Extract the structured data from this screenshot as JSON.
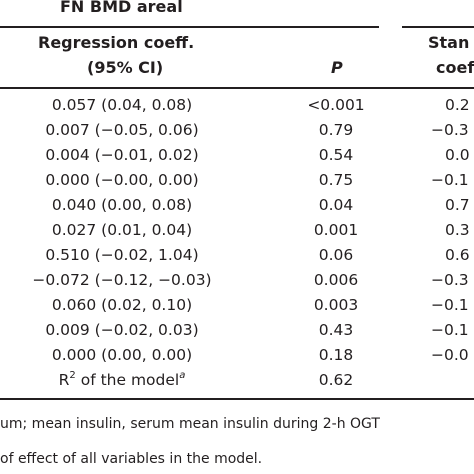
{
  "header": {
    "group_title": "FN BMD areal",
    "col_regression_line1": "Regression coeff.",
    "col_regression_line2": "(95% CI)",
    "col_p": "P",
    "col_standardized_line1": "Stan",
    "col_standardized_line2": "coef"
  },
  "rows": [
    {
      "coef": "0.057 (0.04, 0.08)",
      "p": "<0.001",
      "std": "0.2"
    },
    {
      "coef": "0.007 (−0.05, 0.06)",
      "p": "0.79",
      "std": "−0.3"
    },
    {
      "coef": "0.004 (−0.01, 0.02)",
      "p": "0.54",
      "std": "0.0"
    },
    {
      "coef": "0.000 (−0.00, 0.00)",
      "p": "0.75",
      "std": "−0.1"
    },
    {
      "coef": "0.040 (0.00, 0.08)",
      "p": "0.04",
      "std": "0.7"
    },
    {
      "coef": "0.027 (0.01, 0.04)",
      "p": "0.001",
      "std": "0.3"
    },
    {
      "coef": "0.510 (−0.02, 1.04)",
      "p": "0.06",
      "std": "0.6"
    },
    {
      "coef": "−0.072 (−0.12, −0.03)",
      "p": "0.006",
      "std": "−0.3"
    },
    {
      "coef": "0.060 (0.02, 0.10)",
      "p": "0.003",
      "std": "−0.1"
    },
    {
      "coef": "0.009 (−0.02, 0.03)",
      "p": "0.43",
      "std": "−0.1"
    },
    {
      "coef": "0.000 (0.00, 0.00)",
      "p": "0.18",
      "std": "−0.0"
    }
  ],
  "model_fit": {
    "label": "R",
    "label_sup": "2",
    "label_rest": " of the model",
    "label_note": "a",
    "value": "0.62"
  },
  "footnotes": {
    "line1": "um; mean insulin, serum mean insulin during 2-h OGT",
    "line2": "of effect of all variables in the model."
  }
}
